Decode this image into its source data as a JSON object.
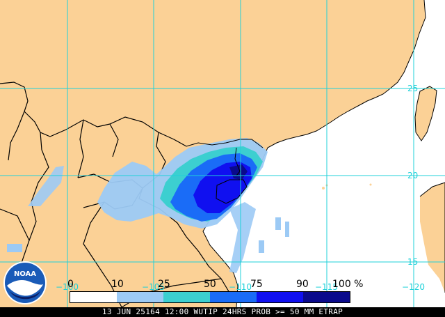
{
  "map": {
    "colors": {
      "land": "#fbd196",
      "ocean": "#ffffff",
      "border": "#000000",
      "gridline": "#1fd1d9"
    },
    "grid_labels": {
      "lat_25": "25",
      "lat_20": "20",
      "lat_15": "15",
      "lon_100": "−100",
      "lon_105": "−105",
      "lon_110": "−110",
      "lon_115": "−115",
      "lon_120": "−120"
    }
  },
  "legend": {
    "ticks": [
      "0",
      "10",
      "25",
      "50",
      "75",
      "90",
      "100 %"
    ],
    "swatch_colors": [
      "#ffffff",
      "#9ccaf5",
      "#3ccfd0",
      "#1a6cf7",
      "#1010f0",
      "#0a0a8c"
    ]
  },
  "logo": {
    "text": "NOAA",
    "colors": {
      "blue": "#1a5bb8",
      "navy": "#0a1e66",
      "white": "#ffffff"
    }
  },
  "footer": {
    "text": "13 JUN 25164 12:00 WUTIP 24HRS PROB >= 50 MM ETRAP"
  }
}
